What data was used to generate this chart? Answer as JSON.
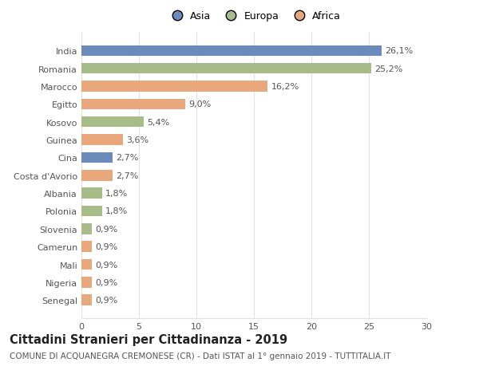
{
  "categories": [
    "India",
    "Romania",
    "Marocco",
    "Egitto",
    "Kosovo",
    "Guinea",
    "Cina",
    "Costa d'Avorio",
    "Albania",
    "Polonia",
    "Slovenia",
    "Camerun",
    "Mali",
    "Nigeria",
    "Senegal"
  ],
  "values": [
    26.1,
    25.2,
    16.2,
    9.0,
    5.4,
    3.6,
    2.7,
    2.7,
    1.8,
    1.8,
    0.9,
    0.9,
    0.9,
    0.9,
    0.9
  ],
  "labels": [
    "26,1%",
    "25,2%",
    "16,2%",
    "9,0%",
    "5,4%",
    "3,6%",
    "2,7%",
    "2,7%",
    "1,8%",
    "1,8%",
    "0,9%",
    "0,9%",
    "0,9%",
    "0,9%",
    "0,9%"
  ],
  "colors": [
    "#6b8cba",
    "#a8bc8a",
    "#e8a87c",
    "#e8a87c",
    "#a8bc8a",
    "#e8a87c",
    "#6b8cba",
    "#e8a87c",
    "#a8bc8a",
    "#a8bc8a",
    "#a8bc8a",
    "#e8a87c",
    "#e8a87c",
    "#e8a87c",
    "#e8a87c"
  ],
  "legend_labels": [
    "Asia",
    "Europa",
    "Africa"
  ],
  "legend_colors": [
    "#6b8cba",
    "#a8bc8a",
    "#e8a87c"
  ],
  "title": "Cittadini Stranieri per Cittadinanza - 2019",
  "subtitle": "COMUNE DI ACQUANEGRA CREMONESE (CR) - Dati ISTAT al 1° gennaio 2019 - TUTTITALIA.IT",
  "xlim": [
    0,
    30
  ],
  "xticks": [
    0,
    5,
    10,
    15,
    20,
    25,
    30
  ],
  "bg_color": "#ffffff",
  "grid_color": "#e0e0e0",
  "bar_height": 0.6,
  "label_fontsize": 8,
  "tick_fontsize": 8,
  "title_fontsize": 10.5,
  "subtitle_fontsize": 7.5
}
